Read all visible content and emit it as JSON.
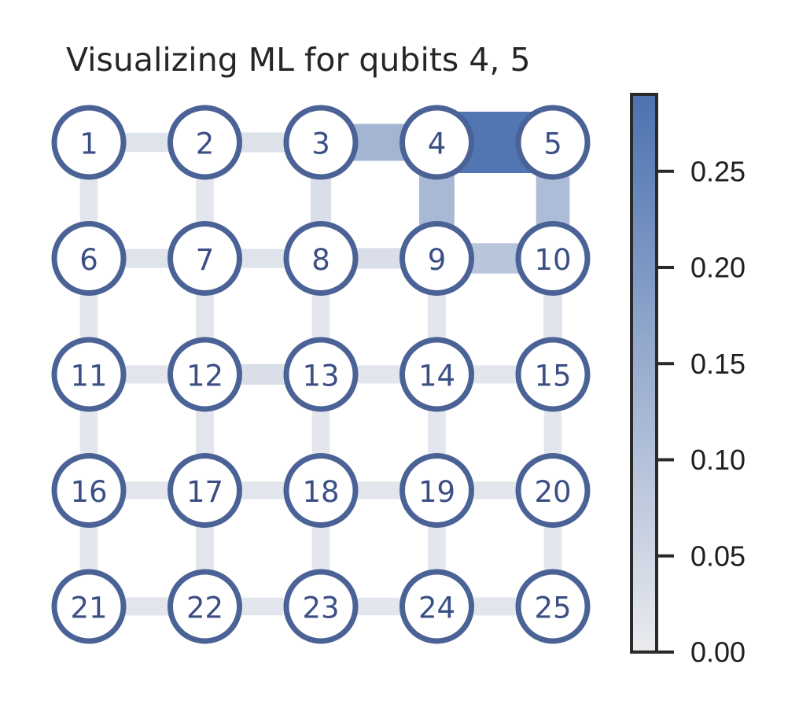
{
  "title": "Visualizing ML for qubits 4, 5",
  "colors": {
    "node_border": "#4a6296",
    "node_fill": "#ffffff",
    "node_text": "#3b4f85",
    "edge_low": "#eaebef",
    "edge_high": "#4c72b0",
    "colorbar_frame": "#2a2a2a"
  },
  "grid": {
    "rows": 5,
    "cols": 5
  },
  "nodes": [
    "1",
    "2",
    "3",
    "4",
    "5",
    "6",
    "7",
    "8",
    "9",
    "10",
    "11",
    "12",
    "13",
    "14",
    "15",
    "16",
    "17",
    "18",
    "19",
    "20",
    "21",
    "22",
    "23",
    "24",
    "25"
  ],
  "edges": [
    {
      "from": 1,
      "to": 2,
      "value": 0.02
    },
    {
      "from": 2,
      "to": 3,
      "value": 0.025
    },
    {
      "from": 3,
      "to": 4,
      "value": 0.13
    },
    {
      "from": 4,
      "to": 5,
      "value": 0.28
    },
    {
      "from": 6,
      "to": 7,
      "value": 0.02
    },
    {
      "from": 7,
      "to": 8,
      "value": 0.02
    },
    {
      "from": 8,
      "to": 9,
      "value": 0.03
    },
    {
      "from": 9,
      "to": 10,
      "value": 0.09
    },
    {
      "from": 11,
      "to": 12,
      "value": 0.015
    },
    {
      "from": 12,
      "to": 13,
      "value": 0.03
    },
    {
      "from": 13,
      "to": 14,
      "value": 0.015
    },
    {
      "from": 14,
      "to": 15,
      "value": 0.015
    },
    {
      "from": 16,
      "to": 17,
      "value": 0.012
    },
    {
      "from": 17,
      "to": 18,
      "value": 0.012
    },
    {
      "from": 18,
      "to": 19,
      "value": 0.012
    },
    {
      "from": 19,
      "to": 20,
      "value": 0.012
    },
    {
      "from": 21,
      "to": 22,
      "value": 0.015
    },
    {
      "from": 22,
      "to": 23,
      "value": 0.012
    },
    {
      "from": 23,
      "to": 24,
      "value": 0.012
    },
    {
      "from": 24,
      "to": 25,
      "value": 0.015
    },
    {
      "from": 1,
      "to": 6,
      "value": 0.012
    },
    {
      "from": 2,
      "to": 7,
      "value": 0.012
    },
    {
      "from": 3,
      "to": 8,
      "value": 0.03
    },
    {
      "from": 4,
      "to": 9,
      "value": 0.12
    },
    {
      "from": 5,
      "to": 10,
      "value": 0.11
    },
    {
      "from": 6,
      "to": 11,
      "value": 0.012
    },
    {
      "from": 7,
      "to": 12,
      "value": 0.015
    },
    {
      "from": 8,
      "to": 13,
      "value": 0.012
    },
    {
      "from": 9,
      "to": 14,
      "value": 0.015
    },
    {
      "from": 10,
      "to": 15,
      "value": 0.02
    },
    {
      "from": 11,
      "to": 16,
      "value": 0.012
    },
    {
      "from": 12,
      "to": 17,
      "value": 0.015
    },
    {
      "from": 13,
      "to": 18,
      "value": 0.012
    },
    {
      "from": 14,
      "to": 19,
      "value": 0.012
    },
    {
      "from": 15,
      "to": 20,
      "value": 0.012
    },
    {
      "from": 16,
      "to": 21,
      "value": 0.012
    },
    {
      "from": 17,
      "to": 22,
      "value": 0.015
    },
    {
      "from": 18,
      "to": 23,
      "value": 0.012
    },
    {
      "from": 19,
      "to": 24,
      "value": 0.012
    },
    {
      "from": 20,
      "to": 25,
      "value": 0.012
    }
  ],
  "colorbar": {
    "min": 0.0,
    "max": 0.29,
    "ticks": [
      0.0,
      0.05,
      0.1,
      0.15,
      0.2,
      0.25
    ],
    "tick_labels": [
      "0.00",
      "0.05",
      "0.10",
      "0.15",
      "0.20",
      "0.25"
    ]
  }
}
